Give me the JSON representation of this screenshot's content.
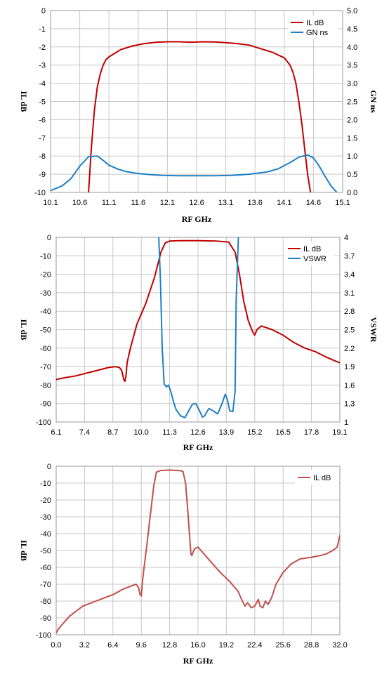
{
  "chart_data": [
    {
      "type": "line",
      "xlabel": "RF GHz",
      "ylabel": "IL dB",
      "y2label": "GN ns",
      "xlim": [
        10.1,
        15.1
      ],
      "ylim": [
        -10,
        0
      ],
      "y2lim": [
        0,
        5
      ],
      "grid": true,
      "legend_position": "top-right",
      "x_ticks": [
        "10.1",
        "10.6",
        "11.1",
        "11.6",
        "12.1",
        "12.6",
        "13.1",
        "13.6",
        "14.1",
        "14.6",
        "15.1"
      ],
      "y_ticks": [
        "0",
        "-1",
        "-2",
        "-3",
        "-4",
        "-5",
        "-6",
        "-7",
        "-8",
        "-9",
        "-10"
      ],
      "y2_ticks": [
        "5.0",
        "4.5",
        "4.0",
        "3.5",
        "3.0",
        "2.5",
        "2.0",
        "1.5",
        "1.0",
        "0.5",
        "0.0"
      ],
      "series": [
        {
          "name": "IL dB",
          "axis": "left",
          "color": "#c00000",
          "x": [
            10.75,
            10.8,
            10.85,
            10.9,
            10.95,
            11.0,
            11.05,
            11.1,
            11.2,
            11.3,
            11.5,
            11.7,
            11.9,
            12.1,
            12.3,
            12.5,
            12.7,
            12.9,
            13.1,
            13.3,
            13.5,
            13.7,
            13.9,
            14.1,
            14.15,
            14.2,
            14.25,
            14.3,
            14.35,
            14.4,
            14.45,
            14.5,
            14.55
          ],
          "values": [
            -10,
            -7.5,
            -5.5,
            -4.2,
            -3.5,
            -3.0,
            -2.7,
            -2.55,
            -2.35,
            -2.15,
            -1.95,
            -1.82,
            -1.75,
            -1.72,
            -1.72,
            -1.74,
            -1.72,
            -1.73,
            -1.77,
            -1.82,
            -1.9,
            -2.1,
            -2.3,
            -2.6,
            -2.8,
            -3.0,
            -3.4,
            -4.0,
            -5.0,
            -6.2,
            -7.6,
            -9.0,
            -10
          ]
        },
        {
          "name": "GN ns",
          "axis": "right",
          "color": "#1f7fc4",
          "x": [
            10.1,
            10.3,
            10.45,
            10.6,
            10.75,
            10.9,
            11.0,
            11.1,
            11.25,
            11.4,
            11.6,
            11.8,
            12.0,
            12.3,
            12.6,
            12.9,
            13.2,
            13.5,
            13.8,
            14.0,
            14.2,
            14.35,
            14.5,
            14.6,
            14.7,
            14.8,
            14.9,
            15.0
          ],
          "values": [
            0.05,
            0.18,
            0.38,
            0.72,
            0.98,
            1.0,
            0.88,
            0.75,
            0.64,
            0.57,
            0.52,
            0.49,
            0.47,
            0.46,
            0.46,
            0.46,
            0.47,
            0.5,
            0.56,
            0.65,
            0.82,
            0.97,
            1.03,
            0.95,
            0.72,
            0.44,
            0.18,
            0.0
          ]
        }
      ]
    },
    {
      "type": "line",
      "xlabel": "RF GHz",
      "ylabel": "IL dB",
      "y2label": "VSWR",
      "xlim": [
        6.1,
        19.1
      ],
      "ylim": [
        -100,
        0
      ],
      "y2lim": [
        1,
        4
      ],
      "grid": true,
      "legend_position": "top-right",
      "x_ticks": [
        "6.1",
        "7.4",
        "8.7",
        "10.0",
        "11.3",
        "12.6",
        "13.9",
        "15.2",
        "16.5",
        "17.8",
        "19.1"
      ],
      "y_ticks": [
        "0",
        "-10",
        "-20",
        "-30",
        "-40",
        "-50",
        "-60",
        "-70",
        "-80",
        "-90",
        "-100"
      ],
      "y2_ticks": [
        "4",
        "3.7",
        "3.4",
        "3.1",
        "2.8",
        "2.5",
        "2.2",
        "1.9",
        "1.6",
        "1.3",
        "1"
      ],
      "series": [
        {
          "name": "IL dB",
          "axis": "left",
          "color": "#c00000",
          "x": [
            6.1,
            6.5,
            7.0,
            7.5,
            8.0,
            8.5,
            8.8,
            9.0,
            9.1,
            9.2,
            9.25,
            9.3,
            9.35,
            9.5,
            9.8,
            10.2,
            10.6,
            10.9,
            11.1,
            11.3,
            11.8,
            12.6,
            13.4,
            14.0,
            14.3,
            14.5,
            14.7,
            14.9,
            15.1,
            15.2,
            15.3,
            15.5,
            16.0,
            16.5,
            17.0,
            17.5,
            18.0,
            18.5,
            19.1
          ],
          "values": [
            -77,
            -76,
            -75,
            -73.5,
            -72,
            -70.5,
            -70,
            -70.5,
            -72,
            -77,
            -78,
            -75,
            -68,
            -60,
            -47,
            -36,
            -22,
            -8,
            -3,
            -2,
            -1.8,
            -1.8,
            -2,
            -2.5,
            -8,
            -20,
            -35,
            -45,
            -51,
            -53,
            -50,
            -48,
            -50,
            -53,
            -57,
            -60,
            -62,
            -65,
            -68
          ]
        },
        {
          "name": "VSWR",
          "axis": "right",
          "color": "#1f7fc4",
          "x": [
            10.8,
            10.88,
            10.96,
            11.05,
            11.15,
            11.25,
            11.35,
            11.5,
            11.6,
            11.8,
            12.0,
            12.2,
            12.35,
            12.5,
            12.7,
            12.8,
            12.9,
            13.1,
            13.3,
            13.5,
            13.7,
            13.85,
            13.95,
            14.05,
            14.2,
            14.3,
            14.35,
            14.45
          ],
          "values": [
            4.0,
            3.3,
            2.2,
            1.62,
            1.57,
            1.6,
            1.5,
            1.3,
            1.2,
            1.1,
            1.07,
            1.2,
            1.29,
            1.3,
            1.16,
            1.08,
            1.1,
            1.22,
            1.18,
            1.13,
            1.3,
            1.45,
            1.36,
            1.18,
            1.17,
            1.5,
            3.0,
            4.0
          ]
        }
      ]
    },
    {
      "type": "line",
      "xlabel": "RF GHz",
      "ylabel": "IL dB",
      "xlim": [
        0.0,
        32.0
      ],
      "ylim": [
        -100,
        0
      ],
      "grid": true,
      "legend_position": "top-right",
      "x_ticks": [
        "0.0",
        "3.2",
        "6.4",
        "9.6",
        "12.8",
        "16.0",
        "19.2",
        "22.4",
        "25.6",
        "28.8",
        "32.0"
      ],
      "y_ticks": [
        "0",
        "-10",
        "-20",
        "-30",
        "-40",
        "-50",
        "-60",
        "-70",
        "-80",
        "-90",
        "-100"
      ],
      "series": [
        {
          "name": "IL dB",
          "axis": "left",
          "color": "#c0504d",
          "x": [
            0.0,
            0.2,
            0.5,
            1.0,
            1.5,
            2.0,
            2.5,
            3.0,
            3.5,
            4.5,
            5.5,
            6.5,
            7.5,
            8.5,
            9.0,
            9.3,
            9.45,
            9.6,
            9.8,
            10.2,
            10.6,
            11.0,
            11.3,
            11.8,
            12.8,
            13.8,
            14.3,
            14.6,
            14.9,
            15.1,
            15.2,
            15.3,
            15.6,
            16.0,
            16.5,
            17.5,
            18.5,
            19.5,
            20.5,
            21.0,
            21.3,
            21.6,
            22.0,
            22.4,
            22.8,
            23.0,
            23.3,
            23.6,
            23.9,
            24.3,
            24.8,
            25.6,
            26.5,
            27.5,
            28.8,
            29.8,
            30.5,
            31.2,
            31.7,
            32.0
          ],
          "values": [
            -99,
            -97,
            -95,
            -92,
            -89,
            -87,
            -85,
            -83,
            -82,
            -80,
            -78,
            -76,
            -73,
            -71,
            -70,
            -72,
            -76,
            -77,
            -65,
            -48,
            -30,
            -12,
            -3.5,
            -2.5,
            -2.3,
            -2.5,
            -3,
            -10,
            -30,
            -45,
            -52,
            -53,
            -49,
            -48,
            -51,
            -57,
            -63,
            -68,
            -74,
            -80,
            -83,
            -81,
            -84,
            -83,
            -79,
            -83,
            -84,
            -80,
            -82,
            -78,
            -70,
            -63,
            -58,
            -55,
            -54,
            -53,
            -52,
            -50,
            -48,
            -41
          ]
        }
      ]
    }
  ]
}
